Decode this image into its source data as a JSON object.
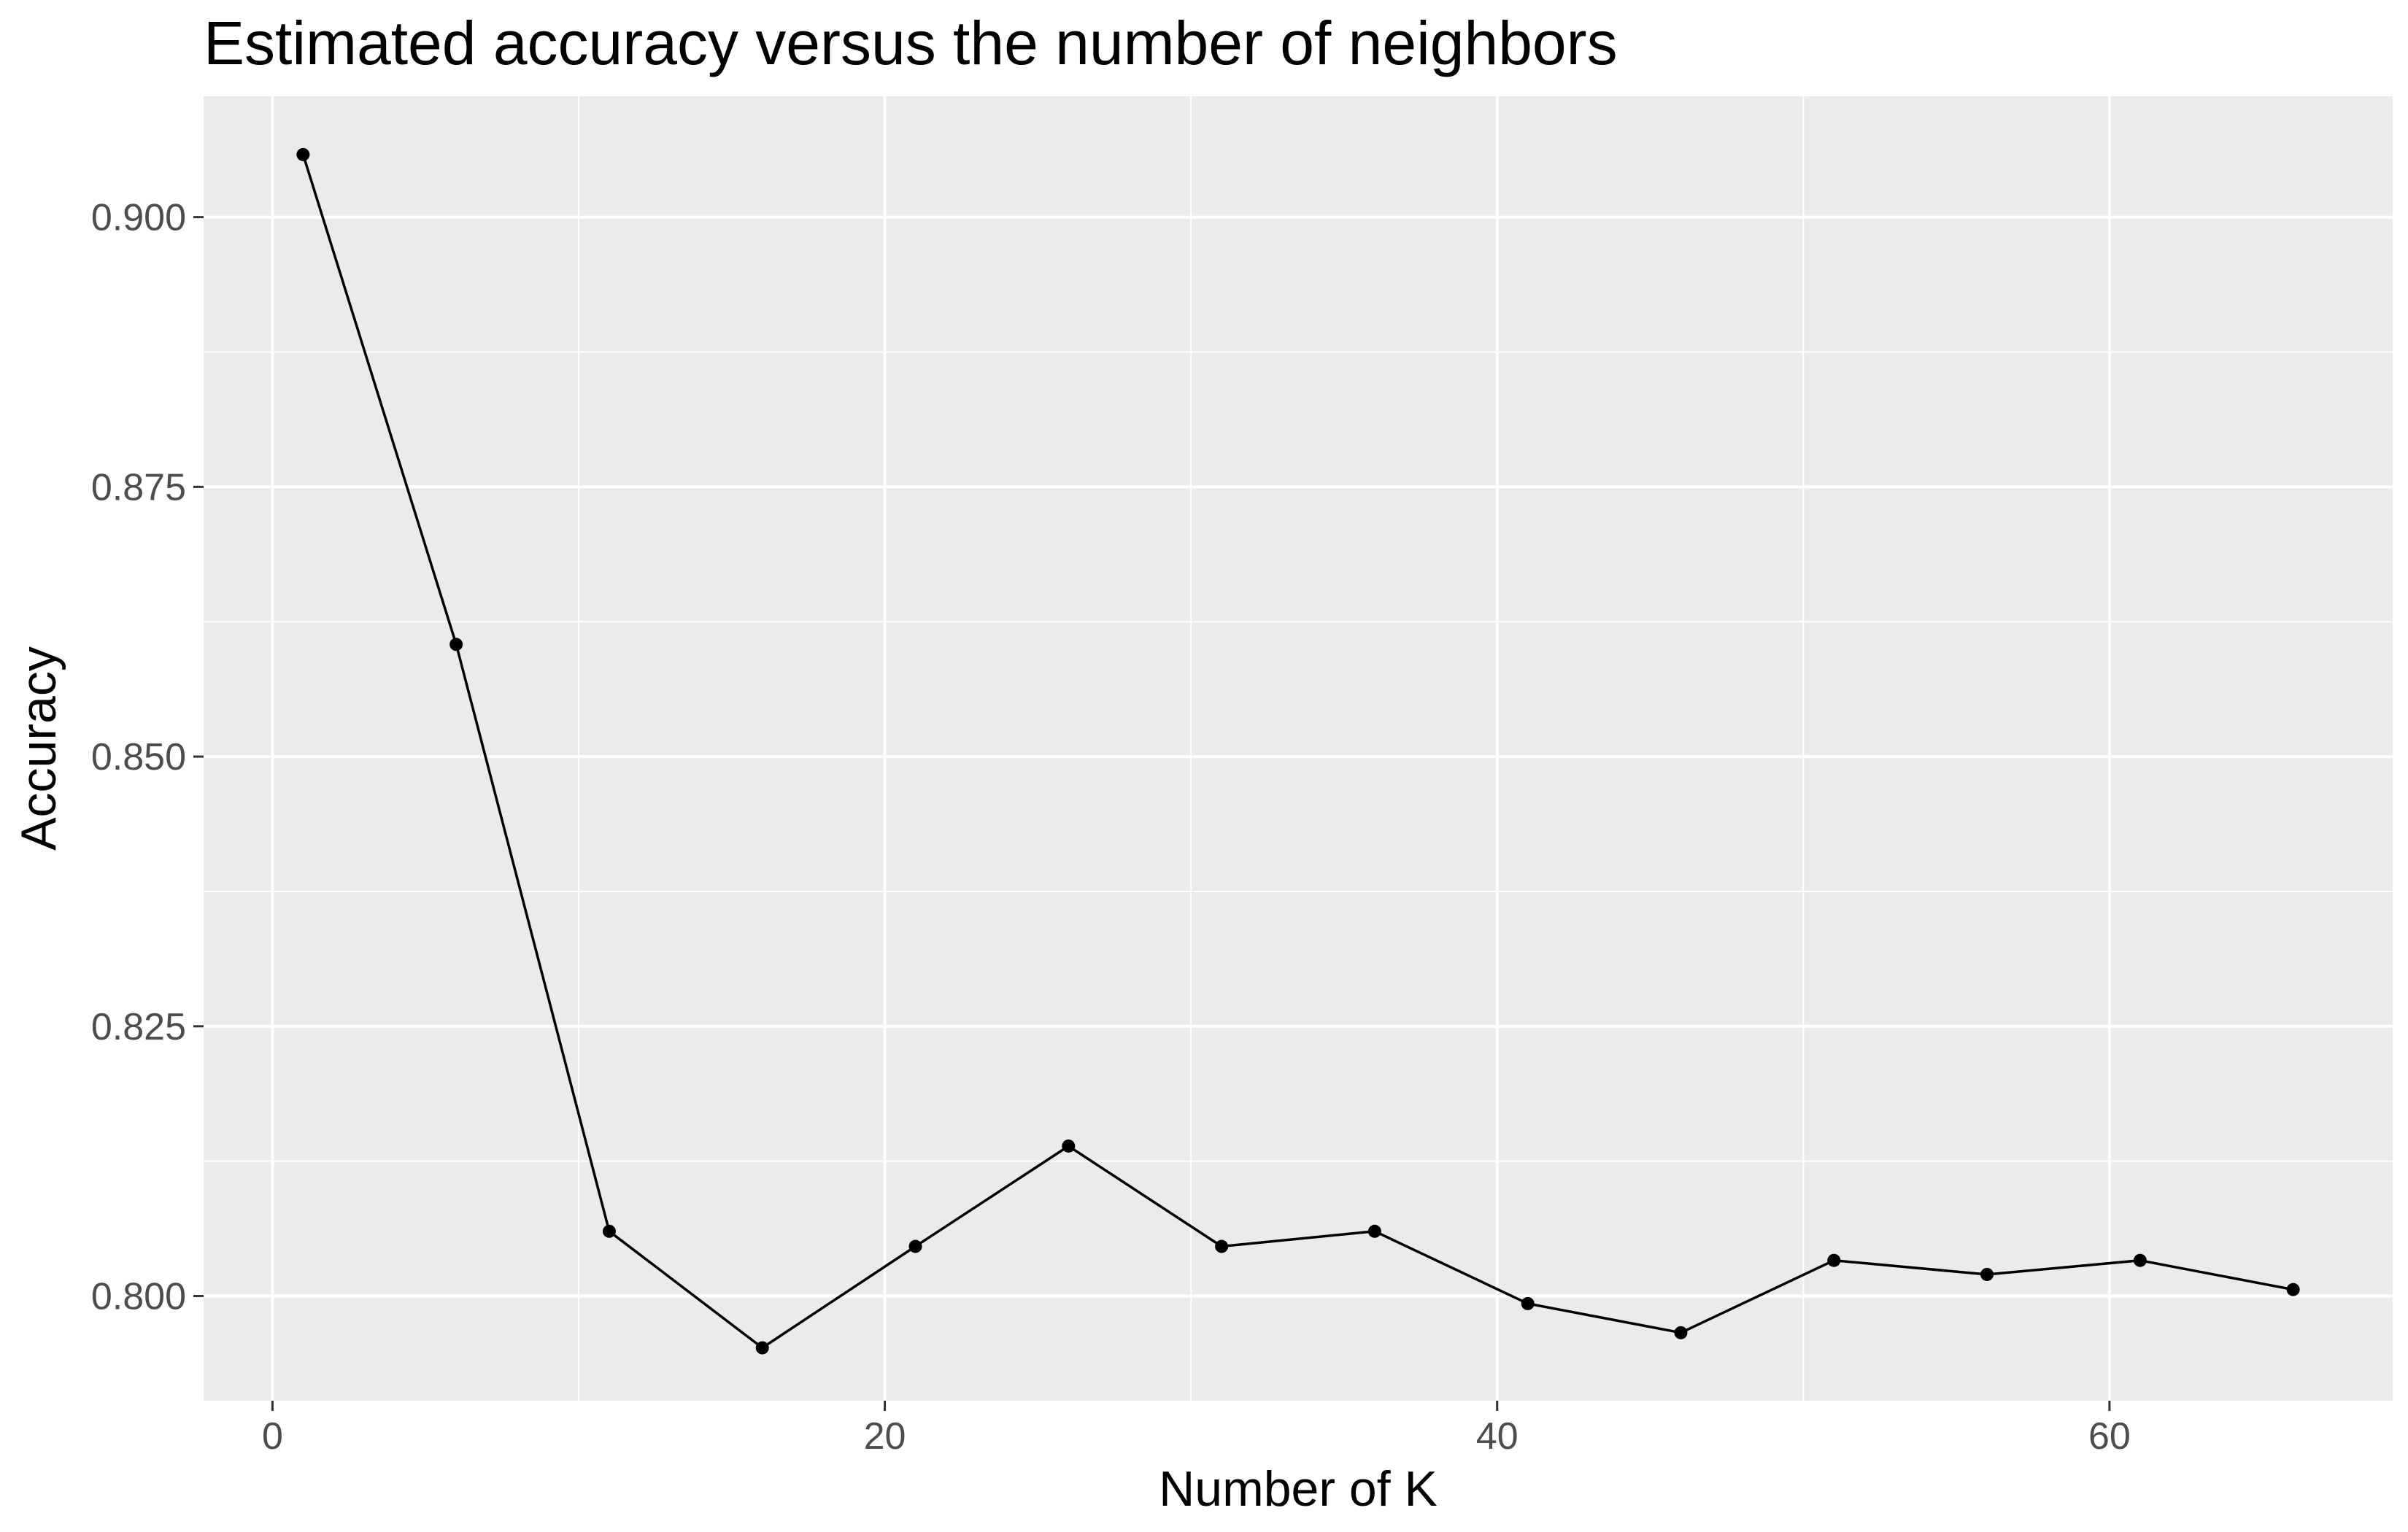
{
  "chart_data": {
    "type": "line",
    "title": "Estimated accuracy versus the number of neighbors",
    "xlabel": "Number of K",
    "ylabel": "Accuracy",
    "xlim": [
      -2.25,
      69.25
    ],
    "ylim": [
      0.7903,
      0.9112
    ],
    "x_ticks": [
      0,
      20,
      40,
      60
    ],
    "x_minor_ticks": [
      10,
      30,
      50
    ],
    "x_tick_labels": [
      "0",
      "20",
      "40",
      "60"
    ],
    "y_ticks": [
      0.8,
      0.825,
      0.85,
      0.875,
      0.9
    ],
    "y_minor_ticks": [
      0.8125,
      0.8375,
      0.8625,
      0.8875
    ],
    "y_tick_labels": [
      "0.800",
      "0.825",
      "0.850",
      "0.875",
      "0.900"
    ],
    "grid": true,
    "legend": "none",
    "colors": {
      "panel_background": "#ebebeb",
      "grid": "#ffffff",
      "line": "#000000",
      "point": "#000000",
      "tick_label": "#4d4d4d",
      "tick_mark": "#333333"
    },
    "series": [
      {
        "x": [
          1,
          6,
          11,
          16,
          21,
          26,
          31,
          36,
          41,
          46,
          51,
          56,
          61,
          66
        ],
        "values": [
          0.9058,
          0.8604,
          0.806,
          0.7952,
          0.8046,
          0.8139,
          0.8046,
          0.806,
          0.7993,
          0.7966,
          0.8033,
          0.802,
          0.8033,
          0.8006
        ]
      }
    ]
  }
}
